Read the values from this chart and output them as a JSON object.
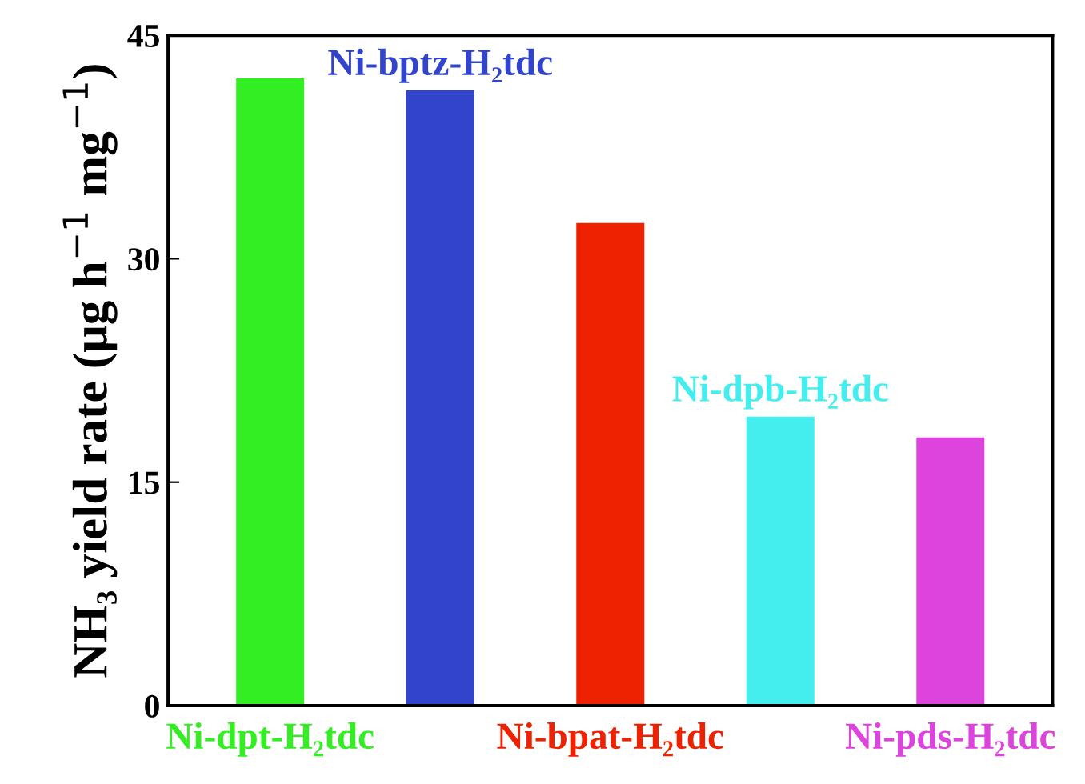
{
  "chart_data": {
    "type": "bar",
    "categories": [
      "Ni-dpt-H₂tdc",
      "Ni-bptz-H₂tdc",
      "Ni-bpat-H₂tdc",
      "Ni-dpb-H₂tdc",
      "Ni-pds-H₂tdc"
    ],
    "values": [
      42.1,
      41.3,
      32.4,
      19.4,
      18.0
    ],
    "colors": [
      "#33ee22",
      "#3344cc",
      "#ee2200",
      "#44eeee",
      "#dd44dd"
    ],
    "ylabel": "NH₃ yield rate (μg h$^{−1}$ mg$^{−1}$)",
    "ylim": [
      0,
      45
    ],
    "yticks": [
      0,
      15,
      30,
      45
    ],
    "grid": false,
    "legend": false
  }
}
